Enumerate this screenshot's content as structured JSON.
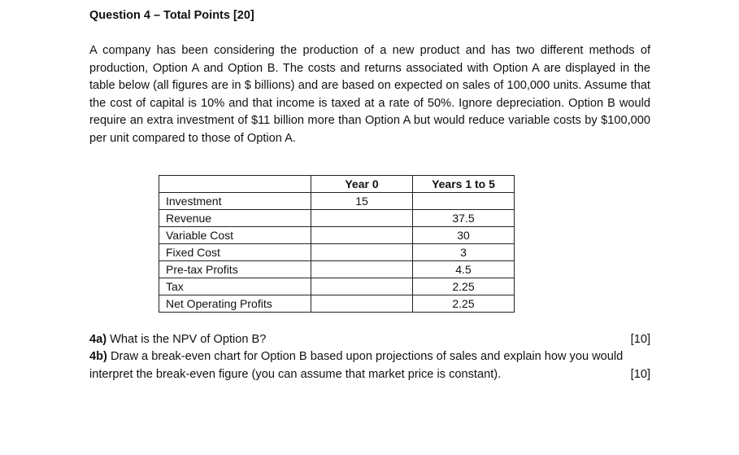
{
  "title": "Question 4 – Total Points [20]",
  "paragraph": "A company has been considering the production of a new product and has two different methods of production, Option A and Option B. The costs and returns associated with Option A are displayed in the table below (all figures are in $ billions) and are based on expected on sales of 100,000 units. Assume that the cost of capital is 10% and that income is taxed at a rate of 50%. Ignore depreciation. Option B would require an extra investment of $11 billion more than Option A but would reduce variable costs by $100,000 per unit compared to those of Option A.",
  "table": {
    "headers": [
      "",
      "Year 0",
      "Years 1 to 5"
    ],
    "rows": [
      [
        "Investment",
        "15",
        ""
      ],
      [
        "Revenue",
        "",
        "37.5"
      ],
      [
        "Variable Cost",
        "",
        "30"
      ],
      [
        "Fixed Cost",
        "",
        "3"
      ],
      [
        "Pre-tax Profits",
        "",
        "4.5"
      ],
      [
        "Tax",
        "",
        "2.25"
      ],
      [
        "Net Operating Profits",
        "",
        "2.25"
      ]
    ]
  },
  "questions": [
    {
      "label": "4a)",
      "text": " What is the NPV of Option B?",
      "points": "[10]"
    },
    {
      "label": "4b)",
      "text": " Draw a break-even chart for Option B based upon projections of sales and explain how you would",
      "text2": "interpret the break-even figure (you can assume that market price is constant).",
      "points": "[10]"
    }
  ]
}
